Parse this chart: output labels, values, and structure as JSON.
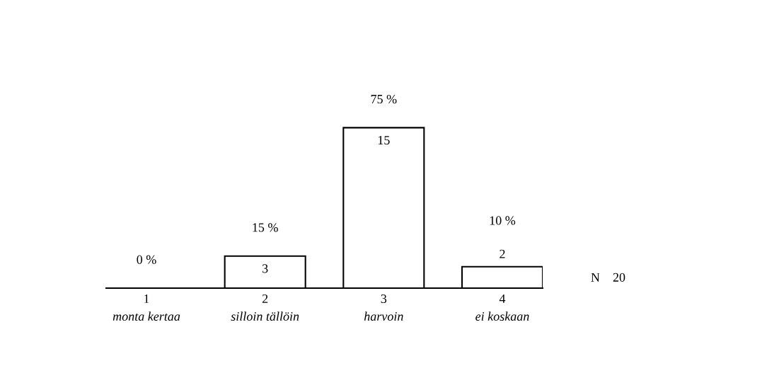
{
  "chart_data": {
    "type": "bar",
    "categories": [
      "1",
      "2",
      "3",
      "4"
    ],
    "values": [
      0,
      3,
      15,
      2
    ],
    "value_labels": [
      null,
      "3",
      "15",
      "2"
    ],
    "color": "#ffffff",
    "annotations": [
      "0 %",
      "15 %",
      "75 %",
      "10 %",
      {
        "text": "monta kertaa",
        "x": "1",
        "y": 0
      },
      {
        "text": "silloin tällöin",
        "x": "2",
        "y": 0
      },
      {
        "text": "harvoin",
        "x": "3",
        "y": 0
      },
      {
        "text": "ei koskaan",
        "x": "4",
        "y": 0
      },
      "N    20"
    ],
    "grid": false,
    "legend": false
  }
}
